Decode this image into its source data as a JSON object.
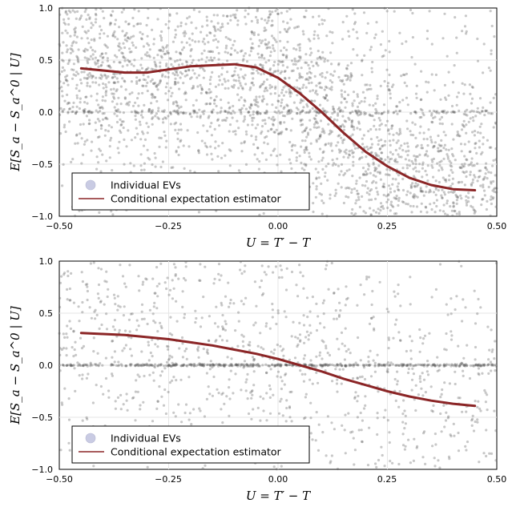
{
  "colors": {
    "scatter": "#555555",
    "curve": "#8b2526",
    "legend_marker": "#c9cbe3",
    "zero_line_dense": "#000000"
  },
  "chart_data": [
    {
      "type": "scatter",
      "xlabel": "U = T′ − T",
      "ylabel": "E[S_a − S_a^0 | U]",
      "xlim": [
        -0.5,
        0.5
      ],
      "ylim": [
        -1.0,
        1.0
      ],
      "xticks": [
        "−0.50",
        "−0.25",
        "0.00",
        "0.25",
        "0.50"
      ],
      "yticks": [
        "1.0",
        "0.5",
        "0.0",
        "−0.5",
        "−1.0"
      ],
      "grid": true,
      "legend_position": "bottom-left",
      "legend": [
        "Individual EVs",
        "Conditional expectation estimator"
      ],
      "scatter_points_approx": 3000,
      "series": [
        {
          "name": "Conditional expectation estimator",
          "x": [
            -0.45,
            -0.4,
            -0.35,
            -0.3,
            -0.25,
            -0.2,
            -0.15,
            -0.1,
            -0.05,
            0.0,
            0.05,
            0.1,
            0.15,
            0.2,
            0.25,
            0.3,
            0.35,
            0.4,
            0.45
          ],
          "y": [
            0.42,
            0.4,
            0.38,
            0.38,
            0.41,
            0.44,
            0.45,
            0.46,
            0.43,
            0.33,
            0.18,
            0.0,
            -0.2,
            -0.38,
            -0.52,
            -0.63,
            -0.7,
            -0.74,
            -0.75
          ]
        }
      ]
    },
    {
      "type": "scatter",
      "xlabel": "U = T′ − T",
      "ylabel": "E[S_a − S_a^0 | U]",
      "xlim": [
        -0.5,
        0.5
      ],
      "ylim": [
        -1.0,
        1.0
      ],
      "xticks": [
        "−0.50",
        "−0.25",
        "0.00",
        "0.25",
        "0.50"
      ],
      "yticks": [
        "1.0",
        "0.5",
        "0.0",
        "−0.5",
        "−1.0"
      ],
      "grid": true,
      "legend_position": "bottom-left",
      "legend": [
        "Individual EVs",
        "Conditional expectation estimator"
      ],
      "scatter_points_approx": 1500,
      "series": [
        {
          "name": "Conditional expectation estimator",
          "x": [
            -0.45,
            -0.4,
            -0.35,
            -0.3,
            -0.25,
            -0.2,
            -0.15,
            -0.1,
            -0.05,
            0.0,
            0.05,
            0.1,
            0.15,
            0.2,
            0.25,
            0.3,
            0.35,
            0.4,
            0.45
          ],
          "y": [
            0.31,
            0.3,
            0.29,
            0.27,
            0.25,
            0.22,
            0.19,
            0.15,
            0.11,
            0.06,
            0.0,
            -0.06,
            -0.13,
            -0.19,
            -0.25,
            -0.3,
            -0.34,
            -0.37,
            -0.39
          ]
        }
      ]
    }
  ]
}
